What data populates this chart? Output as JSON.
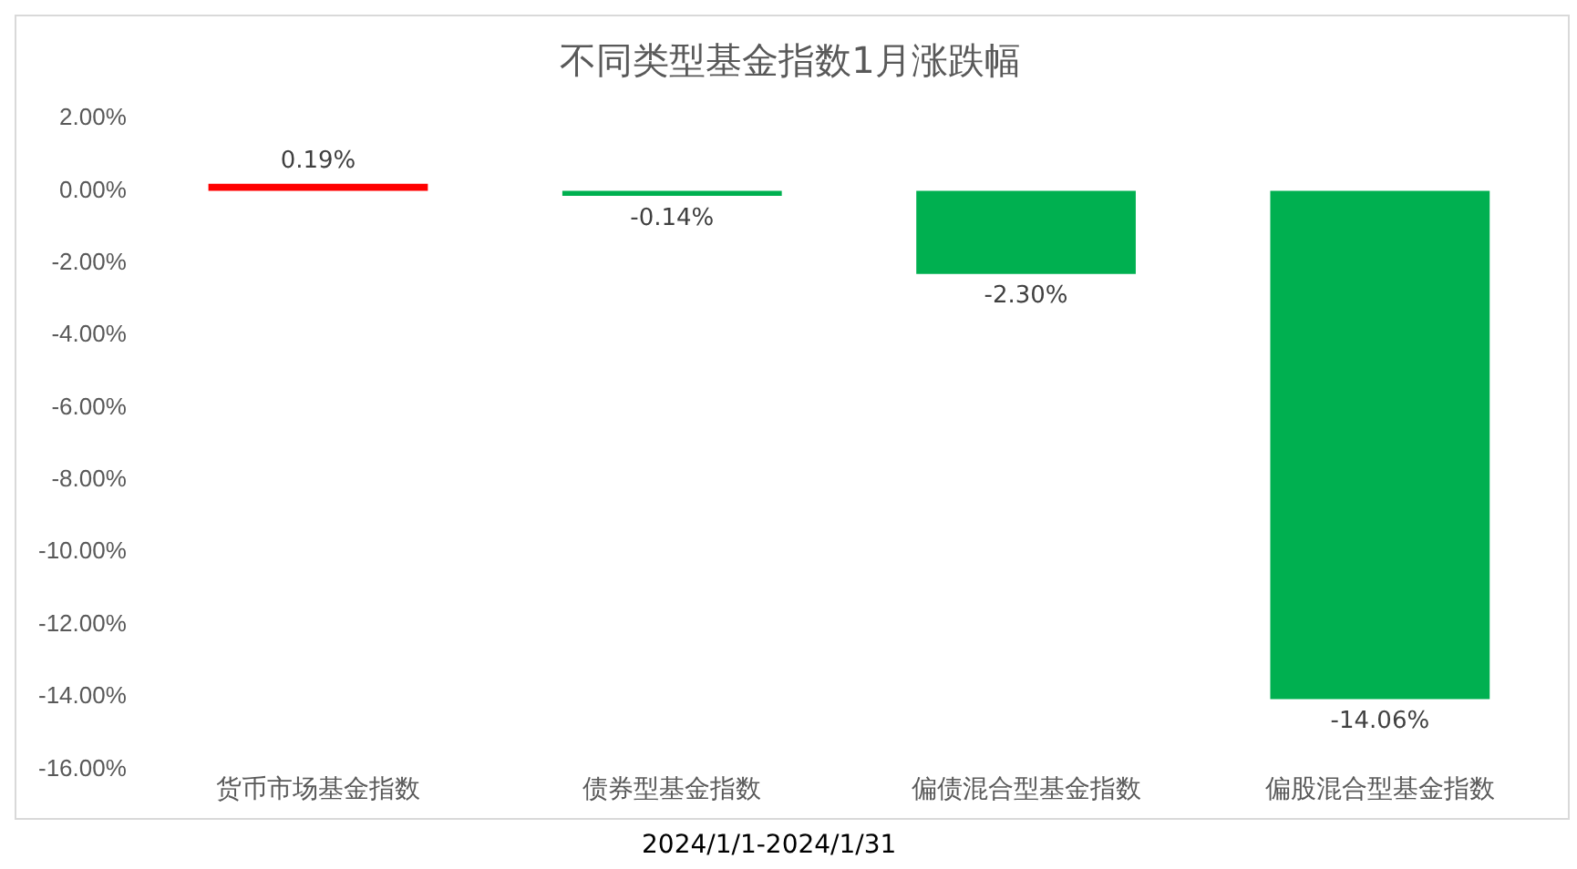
{
  "chart_data": {
    "type": "bar",
    "title": "不同类型基金指数1月涨跌幅",
    "categories": [
      "货币市场基金指数",
      "债券型基金指数",
      "偏债混合型基金指数",
      "偏股混合型基金指数"
    ],
    "values": [
      0.19,
      -0.14,
      -2.3,
      -14.06
    ],
    "colors": [
      "#ff0000",
      "#00b050",
      "#00b050",
      "#00b050"
    ],
    "value_labels": [
      "0.19%",
      "-0.14%",
      "-2.30%",
      "-14.06%"
    ],
    "ylim": [
      -16,
      2
    ],
    "yticks": [
      {
        "value": 2,
        "label": "2.00%"
      },
      {
        "value": 0,
        "label": "0.00%"
      },
      {
        "value": -2,
        "label": "-2.00%"
      },
      {
        "value": -4,
        "label": "-4.00%"
      },
      {
        "value": -6,
        "label": "-6.00%"
      },
      {
        "value": -8,
        "label": "-8.00%"
      },
      {
        "value": -10,
        "label": "-10.00%"
      },
      {
        "value": -12,
        "label": "-12.00%"
      },
      {
        "value": -14,
        "label": "-14.00%"
      },
      {
        "value": -16,
        "label": "-16.00%"
      }
    ],
    "grid": false,
    "legend": false,
    "annotations": [
      "2024/1/1-2024/1/31"
    ]
  }
}
